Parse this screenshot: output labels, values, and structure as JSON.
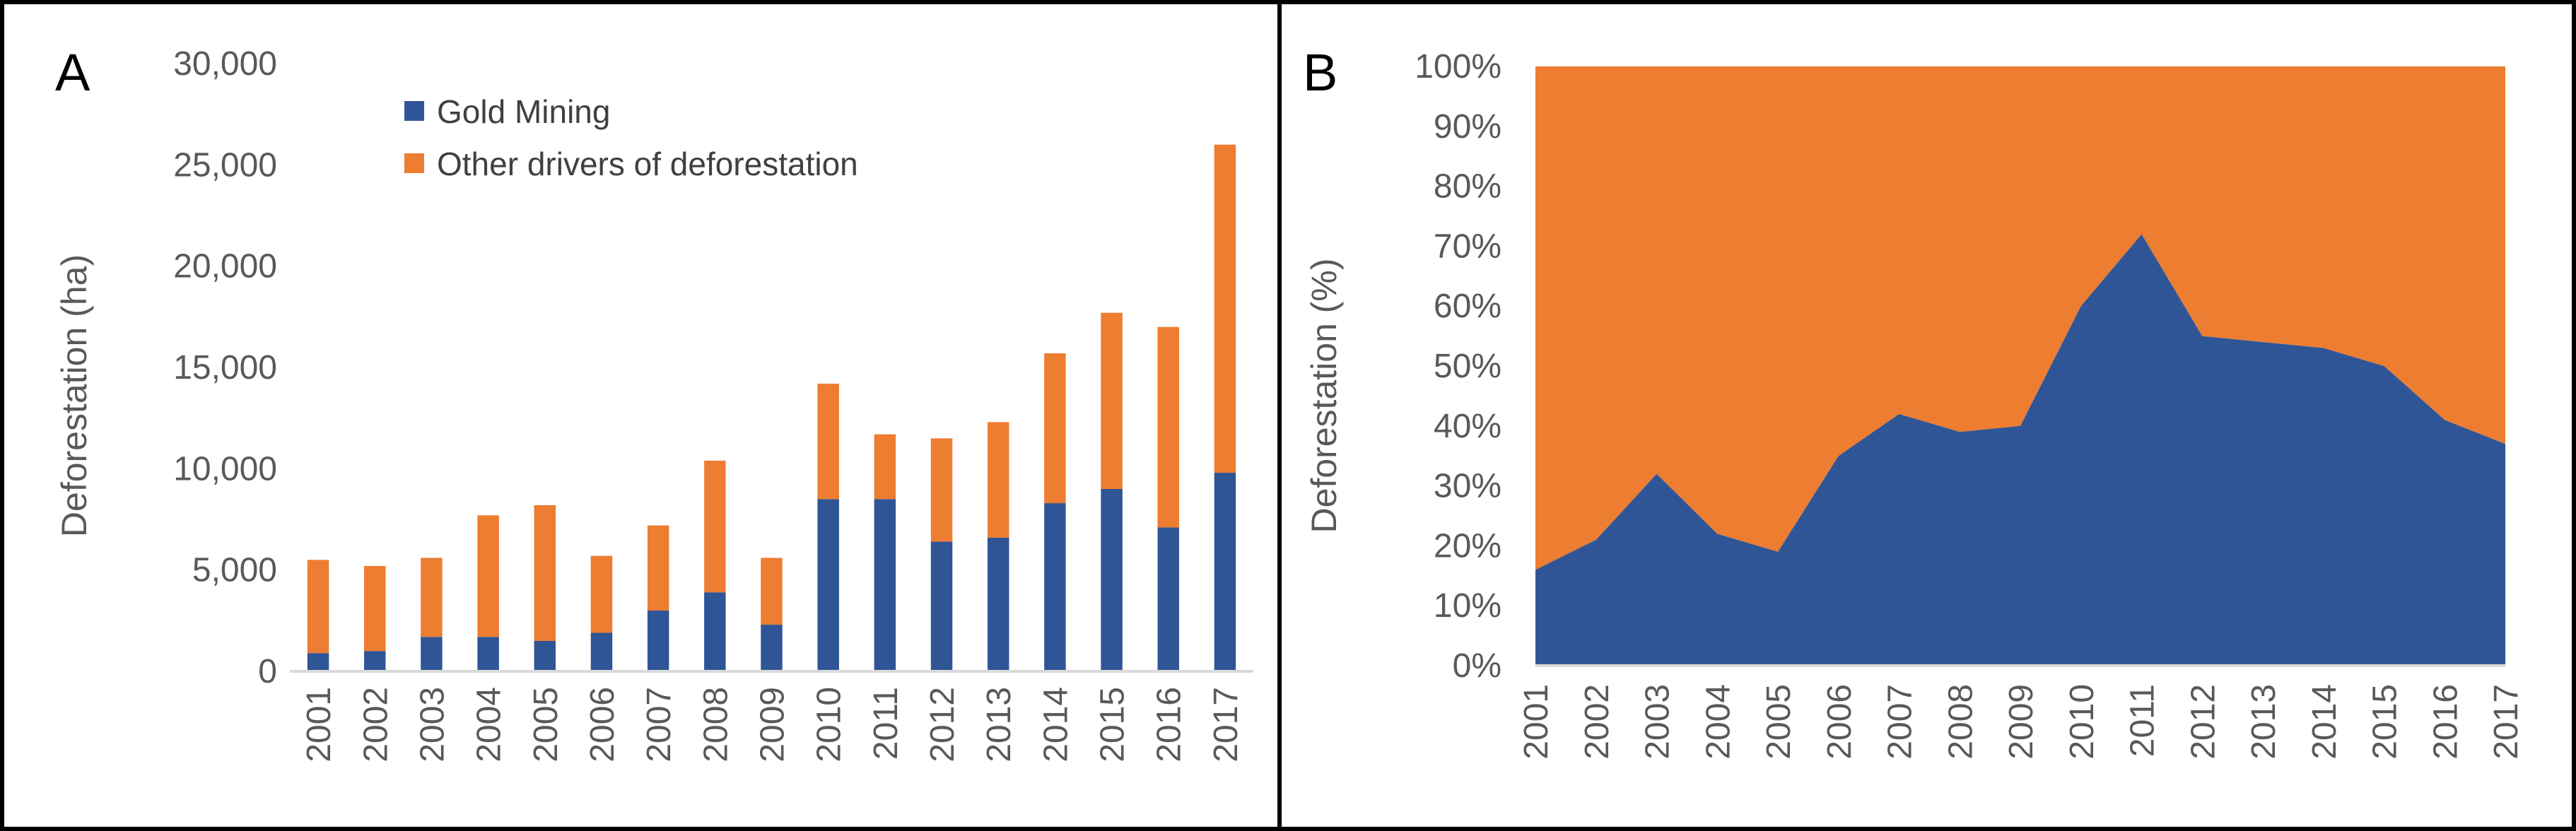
{
  "colors": {
    "gold": "#2f5597",
    "other": "#ed7d31",
    "axis": "#d9d9d9",
    "frame": "#000000"
  },
  "panelA": {
    "letter": "A",
    "legend": [
      "Gold Mining",
      "Other drivers of deforestation"
    ],
    "chart_data": {
      "type": "bar",
      "stacked": true,
      "title": "",
      "xlabel": "",
      "ylabel": "Deforestation (ha)",
      "ylim": [
        0,
        30000
      ],
      "yticks": [
        "0",
        "5,000",
        "10,000",
        "15,000",
        "20,000",
        "25,000",
        "30,000"
      ],
      "categories": [
        "2001",
        "2002",
        "2003",
        "2004",
        "2005",
        "2006",
        "2007",
        "2008",
        "2009",
        "2010",
        "2011",
        "2012",
        "2013",
        "2014",
        "2015",
        "2016",
        "2017"
      ],
      "series": [
        {
          "name": "Gold Mining",
          "values": [
            900,
            1000,
            1700,
            1700,
            1500,
            1900,
            3000,
            3900,
            2300,
            8500,
            8500,
            6400,
            6600,
            8300,
            9000,
            7100,
            9800
          ]
        },
        {
          "name": "Other drivers of deforestation",
          "values": [
            4600,
            4200,
            3900,
            6000,
            6700,
            3800,
            4200,
            6500,
            3300,
            5700,
            3200,
            5100,
            5700,
            7400,
            8700,
            9900,
            16200
          ]
        }
      ]
    }
  },
  "panelB": {
    "letter": "B",
    "chart_data": {
      "type": "area",
      "stacked": true,
      "percent": true,
      "title": "",
      "xlabel": "",
      "ylabel": "Deforestation (%)",
      "ylim": [
        0,
        100
      ],
      "yticks": [
        "0%",
        "10%",
        "20%",
        "30%",
        "40%",
        "50%",
        "60%",
        "70%",
        "80%",
        "90%",
        "100%"
      ],
      "categories": [
        "2001",
        "2002",
        "2003",
        "2004",
        "2005",
        "2006",
        "2007",
        "2008",
        "2009",
        "2010",
        "2011",
        "2012",
        "2013",
        "2014",
        "2015",
        "2016",
        "2017"
      ],
      "series": [
        {
          "name": "Gold Mining",
          "values": [
            16,
            21,
            32,
            22,
            19,
            35,
            42,
            39,
            40,
            60,
            72,
            55,
            54,
            53,
            50,
            41,
            37
          ]
        },
        {
          "name": "Other drivers of deforestation",
          "values": [
            84,
            79,
            68,
            78,
            81,
            65,
            58,
            61,
            60,
            40,
            28,
            45,
            46,
            47,
            50,
            59,
            63
          ]
        }
      ]
    }
  }
}
